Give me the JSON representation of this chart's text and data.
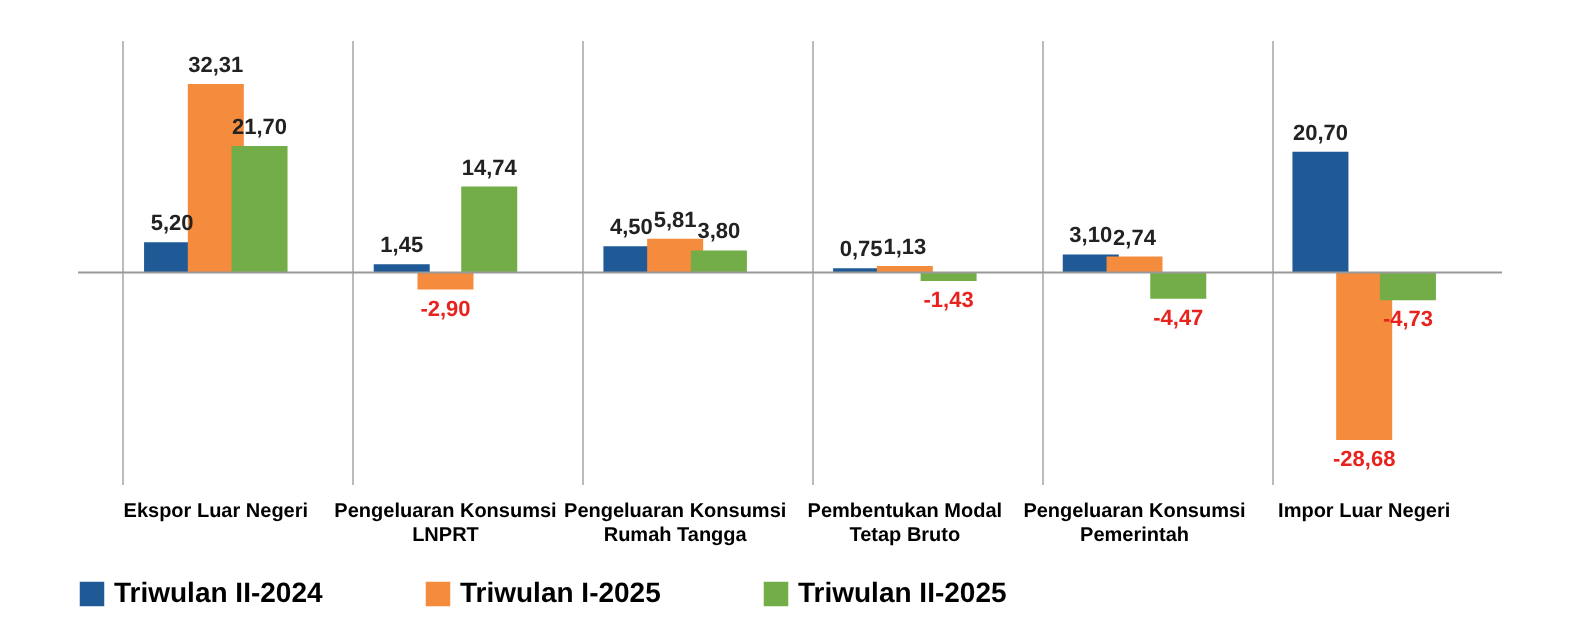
{
  "chart_data": {
    "type": "bar",
    "categories": [
      "Ekspor Luar Negeri",
      "Pengeluaran Konsumsi LNPRT",
      "Pengeluaran Konsumsi Rumah Tangga",
      "Pembentukan Modal Tetap Bruto",
      "Pengeluaran Konsumsi Pemerintah",
      "Impor Luar Negeri"
    ],
    "series": [
      {
        "name": "Triwulan II-2024",
        "color": "#1f5a96",
        "values": [
          5.2,
          1.45,
          4.5,
          0.75,
          3.1,
          20.7
        ],
        "value_labels": [
          "5,20",
          "1,45",
          "4,50",
          "0,75",
          "3,10",
          "20,70"
        ]
      },
      {
        "name": "Triwulan I-2025",
        "color": "#f58b3c",
        "values": [
          32.31,
          -2.9,
          5.81,
          1.13,
          2.74,
          -28.68
        ],
        "value_labels": [
          "32,31",
          "-2,90",
          "5,81",
          "1,13",
          "2,74",
          "-28,68"
        ]
      },
      {
        "name": "Triwulan II-2025",
        "color": "#72ad47",
        "values": [
          21.7,
          14.74,
          3.8,
          -1.43,
          -4.47,
          -4.73
        ],
        "value_labels": [
          "21,70",
          "14,74",
          "3,80",
          "-1,43",
          "-4,47",
          "-4,73"
        ]
      }
    ],
    "grid": "x",
    "legend": "bottom"
  }
}
